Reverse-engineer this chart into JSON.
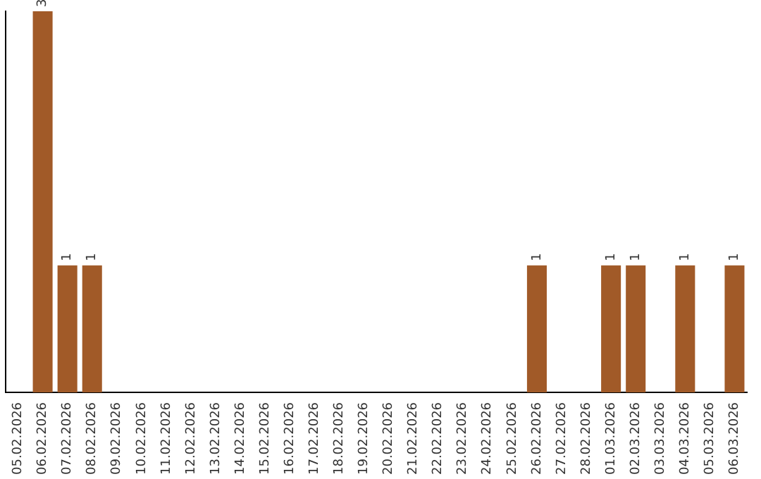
{
  "chart_data": {
    "type": "bar",
    "categories": [
      "05.02.2026",
      "06.02.2026",
      "07.02.2026",
      "08.02.2026",
      "09.02.2026",
      "10.02.2026",
      "11.02.2026",
      "12.02.2026",
      "13.02.2026",
      "14.02.2026",
      "15.02.2026",
      "16.02.2026",
      "17.02.2026",
      "18.02.2026",
      "19.02.2026",
      "20.02.2026",
      "21.02.2026",
      "22.02.2026",
      "23.02.2026",
      "24.02.2026",
      "25.02.2026",
      "26.02.2026",
      "27.02.2026",
      "28.02.2026",
      "01.03.2026",
      "02.03.2026",
      "03.03.2026",
      "04.03.2026",
      "05.03.2026",
      "06.03.2026"
    ],
    "values": [
      0,
      3,
      1,
      1,
      0,
      0,
      0,
      0,
      0,
      0,
      0,
      0,
      0,
      0,
      0,
      0,
      0,
      0,
      0,
      0,
      0,
      1,
      0,
      0,
      1,
      1,
      0,
      1,
      0,
      1
    ],
    "value_labels": [
      null,
      "3",
      "1",
      "1",
      null,
      null,
      null,
      null,
      null,
      null,
      null,
      null,
      null,
      null,
      null,
      null,
      null,
      null,
      null,
      null,
      null,
      "1",
      null,
      null,
      "1",
      "1",
      null,
      "1",
      null,
      "1"
    ],
    "color": "#a15a28",
    "ylim": [
      0,
      3
    ],
    "tick_labels": "x",
    "grid": false,
    "legend": false
  }
}
